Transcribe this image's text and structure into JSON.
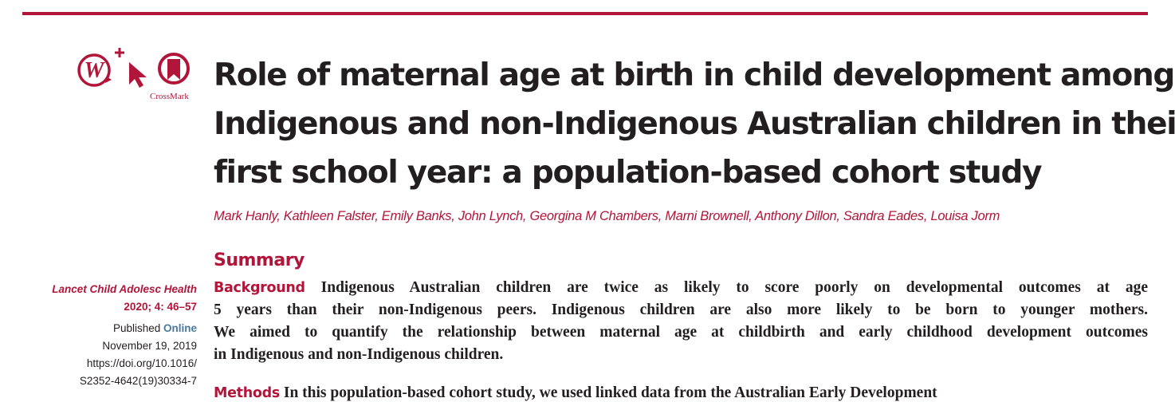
{
  "header": {
    "crossmark_label": "CrossMark",
    "accent_color": "#b1163a"
  },
  "article": {
    "title_lines": [
      "Role of maternal age at birth in child development among",
      "Indigenous and non-Indigenous Australian children in their",
      "first school year: a population-based cohort study"
    ],
    "authors": "Mark Hanly, Kathleen Falster, Emily Banks, John Lynch, Georgina M Chambers, Marni Brownell, Anthony Dillon, Sandra Eades, Louisa Jorm"
  },
  "sidebar": {
    "journal": "Lancet Child Adolesc Health",
    "volume": "2020; 4: 46–57",
    "published_prefix": "Published ",
    "published_online": "Online",
    "date": "November 19, 2019",
    "doi_line1": "https://doi.org/10.1016/",
    "doi_line2": "S2352-4642(19)30334-7"
  },
  "summary": {
    "heading": "Summary",
    "background_label": "Background",
    "background_lines": [
      " Indigenous Australian children are twice as likely to score poorly on developmental outcomes at age",
      "5 years than their non-Indigenous peers. Indigenous children are also more likely to be born to younger mothers.",
      "We aimed to quantify the relationship between maternal age at childbirth and early childhood development outcomes",
      "in Indigenous and non-Indigenous children."
    ],
    "methods_label": "Methods",
    "methods_partial": " In this population-based cohort study, we used linked data from the Australian Early Development"
  },
  "icons": [
    "reading-list-icon",
    "cursor-plus-icon",
    "bookmark-circle-icon"
  ]
}
